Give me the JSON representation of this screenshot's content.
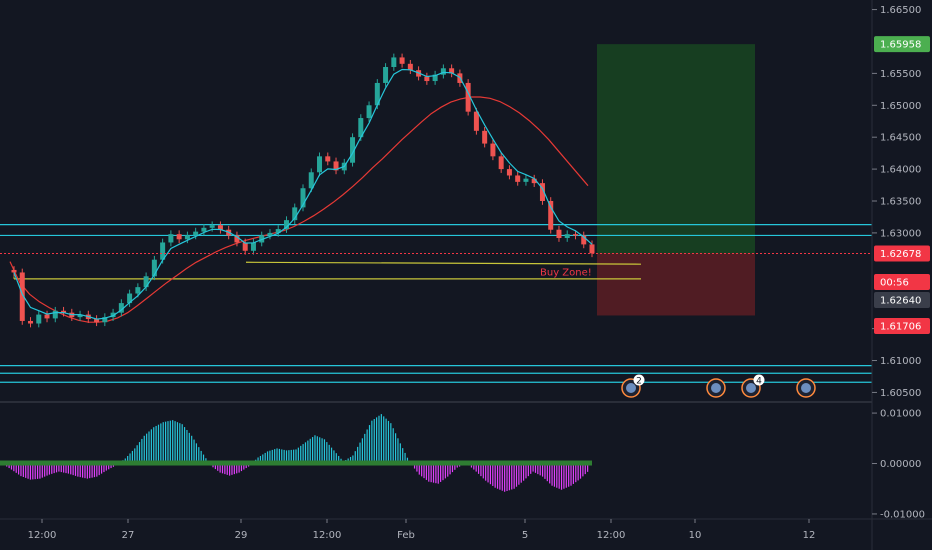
{
  "chart_data": {
    "type": "candlestick",
    "price_axis": {
      "ticks": [
        "1.66500",
        "1.65500",
        "1.65000",
        "1.64500",
        "1.64000",
        "1.63500",
        "1.63000",
        "1.61500",
        "1.61000",
        "1.60500"
      ],
      "tick_values": [
        1.665,
        1.655,
        1.65,
        1.645,
        1.64,
        1.635,
        1.63,
        1.615,
        1.61,
        1.605
      ],
      "range": [
        1.6035,
        1.6665
      ]
    },
    "indicator_axis": {
      "ticks": [
        "0.01000",
        "0.00000",
        "-0.01000"
      ],
      "tick_values": [
        0.01,
        0.0,
        -0.01
      ],
      "range": [
        -0.011,
        0.0118
      ]
    },
    "time_axis": {
      "labels": [
        "12:00",
        "27",
        "29",
        "12:00",
        "Feb",
        "5",
        "12:00",
        "10",
        "12"
      ]
    },
    "price_tags": [
      {
        "label": "1.65958",
        "value": 1.65958,
        "bg": "#4caf50",
        "fg": "#ffffff"
      },
      {
        "label": "1.62678",
        "value": 1.62678,
        "bg": "#f23645",
        "fg": "#ffffff"
      },
      {
        "label": "00:56",
        "value": 1.6248,
        "bg": "#f23645",
        "fg": "#ffffff"
      },
      {
        "label": "1.62640",
        "value": 1.6264,
        "bg": "#3a3e4a",
        "fg": "#ffffff"
      },
      {
        "label": "1.61706",
        "value": 1.61706,
        "bg": "#f23645",
        "fg": "#ffffff"
      }
    ],
    "close_series": [
      1.6238,
      1.6162,
      1.6158,
      1.6172,
      1.6166,
      1.6178,
      1.6175,
      1.6168,
      1.6172,
      1.6165,
      1.616,
      1.6168,
      1.6175,
      1.619,
      1.6205,
      1.6215,
      1.6232,
      1.6258,
      1.6285,
      1.6298,
      1.629,
      1.6296,
      1.6302,
      1.6308,
      1.6312,
      1.6305,
      1.6296,
      1.6285,
      1.6272,
      1.6285,
      1.6296,
      1.63,
      1.6306,
      1.632,
      1.634,
      1.637,
      1.6395,
      1.642,
      1.6412,
      1.6398,
      1.641,
      1.645,
      1.648,
      1.65,
      1.6535,
      1.656,
      1.6575,
      1.6565,
      1.6555,
      1.6545,
      1.6538,
      1.6548,
      1.6558,
      1.655,
      1.6535,
      1.649,
      1.646,
      1.644,
      1.642,
      1.64,
      1.639,
      1.638,
      1.6385,
      1.6378,
      1.635,
      1.6305,
      1.6292,
      1.6298,
      1.6296,
      1.6282,
      1.6268
    ],
    "ma_series": [
      1.6255,
      1.6222,
      1.6204,
      1.6192,
      1.6183,
      1.6175,
      1.6168,
      1.6163,
      1.616,
      1.616,
      1.6162,
      1.6167,
      1.6175,
      1.6186,
      1.6198,
      1.621,
      1.6222,
      1.6233,
      1.6244,
      1.6254,
      1.6262,
      1.627,
      1.6277,
      1.6283,
      1.6288,
      1.6292,
      1.6296,
      1.63,
      1.6304,
      1.631,
      1.6318,
      1.6327,
      1.6337,
      1.6348,
      1.636,
      1.6373,
      1.6387,
      1.6402,
      1.6416,
      1.6431,
      1.6446,
      1.646,
      1.6474,
      1.6487,
      1.6497,
      1.6505,
      1.651,
      1.6513,
      1.6513,
      1.6511,
      1.6506,
      1.6498,
      1.6488,
      1.6476,
      1.6462,
      1.6446,
      1.6428,
      1.641,
      1.6392,
      1.6374
    ],
    "histogram": [
      0.0,
      -0.0012,
      -0.0025,
      -0.0032,
      -0.003,
      -0.0022,
      -0.0016,
      -0.002,
      -0.0026,
      -0.003,
      -0.0026,
      -0.0014,
      -0.0004,
      0.001,
      0.003,
      0.0055,
      0.0072,
      0.0082,
      0.0086,
      0.0078,
      0.0055,
      0.0025,
      -0.0004,
      -0.0018,
      -0.0024,
      -0.0018,
      -0.0006,
      0.0012,
      0.0024,
      0.003,
      0.0026,
      0.0028,
      0.0042,
      0.0056,
      0.0048,
      0.0026,
      0.0004,
      0.0016,
      0.005,
      0.0085,
      0.0098,
      0.008,
      0.004,
      0.0002,
      -0.0022,
      -0.0036,
      -0.004,
      -0.0026,
      -0.0008,
      0.0,
      -0.0016,
      -0.0034,
      -0.0048,
      -0.0056,
      -0.005,
      -0.0034,
      -0.0016,
      -0.0026,
      -0.0044,
      -0.0052,
      -0.0044,
      -0.003,
      -0.0012
    ],
    "horizontal_levels": [
      {
        "name": "resistance-band-top",
        "value": 1.6313,
        "color": "#26c6da"
      },
      {
        "name": "resistance-band-bottom",
        "value": 1.6296,
        "color": "#26c6da"
      },
      {
        "name": "support-band-top",
        "value": 1.6092,
        "color": "#26c6da"
      },
      {
        "name": "support-band-bottom",
        "value": 1.608,
        "color": "#26c6da"
      },
      {
        "name": "support-low",
        "value": 1.6066,
        "color": "#26c6da"
      }
    ],
    "trend_lines": [
      {
        "name": "trend-line-upper",
        "from": [
          1.6254,
          "29"
        ],
        "to": [
          1.6251,
          "after-5"
        ],
        "color": "#c8c63a"
      },
      {
        "name": "trend-line-lower",
        "from": [
          1.6228,
          "start"
        ],
        "to": [
          1.6228,
          "after-5"
        ],
        "color": "#c8c63a"
      }
    ],
    "annotations": [
      {
        "text": "Buy Zone!",
        "color": "#f23645"
      }
    ],
    "position_tool": {
      "profit_top": 1.65958,
      "entry": 1.62678,
      "stop": 1.61706,
      "profit_color": "#1b5e20",
      "loss_color": "#7a1f25"
    },
    "event_markers": [
      {
        "badge": "2"
      },
      {
        "badge": ""
      },
      {
        "badge": "4"
      },
      {
        "badge": ""
      }
    ],
    "colors": {
      "background": "#131722",
      "up": "#26a69a",
      "down": "#ef5350",
      "fast_ma": "#26c6da",
      "slow_ma": "#e53935",
      "hist_pos": "#26c6da",
      "hist_neg": "#e040fb",
      "hist_zero": "#2e7d32"
    }
  }
}
